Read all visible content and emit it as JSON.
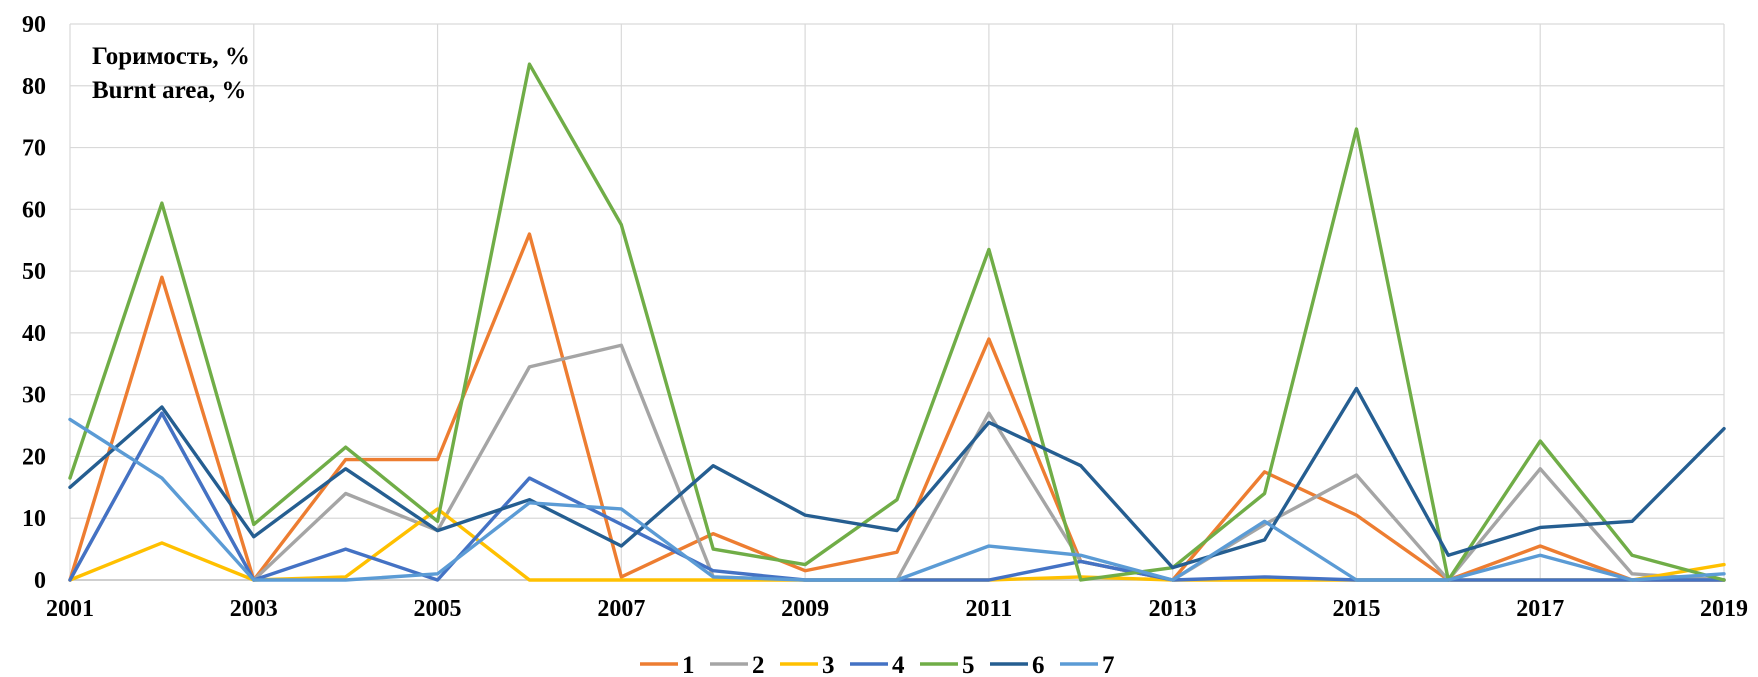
{
  "chart_data": {
    "type": "line",
    "ylabel": [
      "Горимость, %",
      "Burnt area, %"
    ],
    "xlabel": "",
    "ylim": [
      0,
      90
    ],
    "yticks": [
      0,
      10,
      20,
      30,
      40,
      50,
      60,
      70,
      80,
      90
    ],
    "x": [
      2001,
      2002,
      2003,
      2004,
      2005,
      2006,
      2007,
      2008,
      2009,
      2010,
      2011,
      2012,
      2013,
      2014,
      2015,
      2016,
      2017,
      2018,
      2019
    ],
    "xtick_labels": [
      "2001",
      "2003",
      "2005",
      "2007",
      "2009",
      "2011",
      "2013",
      "2015",
      "2017",
      "2019"
    ],
    "grid": true,
    "legend_position": "bottom",
    "series": [
      {
        "name": "1",
        "color": "#ED7D31",
        "values": [
          0,
          49,
          0,
          19.5,
          19.5,
          56,
          0.5,
          7.5,
          1.5,
          4.5,
          39,
          3,
          0,
          17.5,
          10.5,
          0,
          5.5,
          0,
          0
        ]
      },
      {
        "name": "2",
        "color": "#A5A5A5",
        "values": [
          0,
          27,
          0,
          14,
          8,
          34.5,
          38,
          0.5,
          0,
          0,
          27,
          3,
          0,
          9,
          17,
          0,
          18,
          1,
          0
        ]
      },
      {
        "name": "3",
        "color": "#FFC000",
        "values": [
          0,
          6,
          0,
          0.5,
          11.5,
          0,
          0,
          0,
          0,
          0,
          0,
          0.5,
          0,
          0,
          0,
          0,
          0,
          0,
          2.5
        ]
      },
      {
        "name": "4",
        "color": "#4472C4",
        "values": [
          0,
          27,
          0,
          5,
          0,
          16.5,
          9,
          1.5,
          0,
          0,
          0,
          3,
          0,
          0.5,
          0,
          0,
          0,
          0,
          0
        ]
      },
      {
        "name": "5",
        "color": "#70AD47",
        "values": [
          16.5,
          61,
          9,
          21.5,
          9.5,
          83.5,
          57.5,
          5,
          2.5,
          13,
          53.5,
          0,
          2,
          14,
          73,
          0,
          22.5,
          4,
          0
        ]
      },
      {
        "name": "6",
        "color": "#255E91",
        "values": [
          15,
          28,
          7,
          18,
          8,
          13,
          5.5,
          18.5,
          10.5,
          8,
          25.5,
          18.5,
          2,
          6.5,
          31,
          4,
          8.5,
          9.5,
          24.5
        ]
      },
      {
        "name": "7",
        "color": "#5B9BD5",
        "values": [
          26,
          16.5,
          0,
          0,
          1,
          12.5,
          11.5,
          0.5,
          0,
          0,
          5.5,
          4,
          0,
          9.5,
          0,
          0,
          4,
          0,
          1
        ]
      }
    ]
  }
}
